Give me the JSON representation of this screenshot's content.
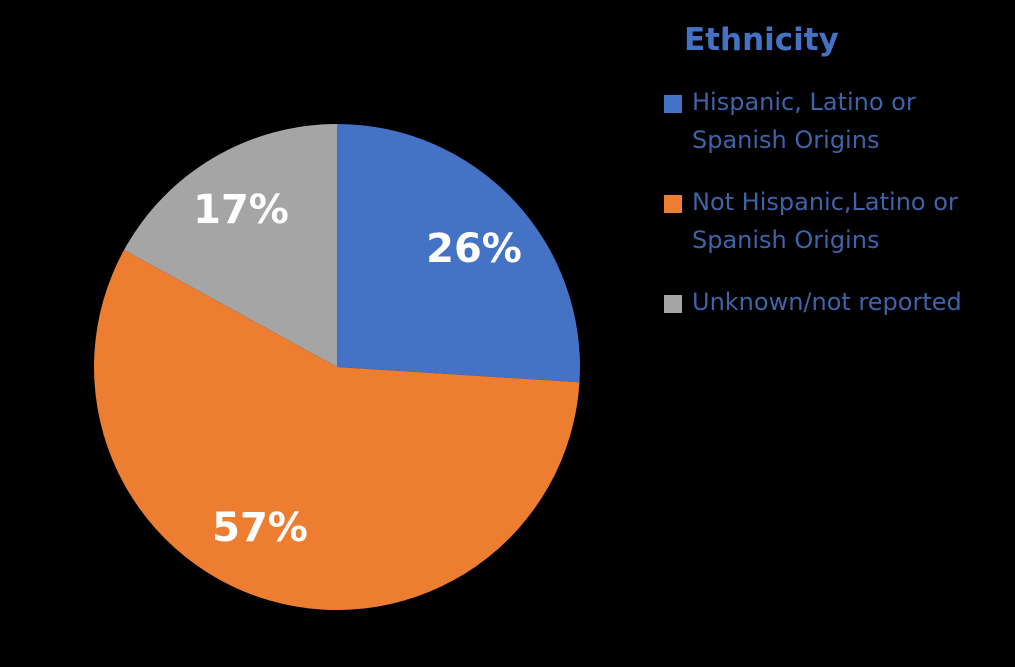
{
  "chart_data": {
    "type": "pie",
    "title": "Ethnicity",
    "categories": [
      "Hispanic, Latino or Spanish Origins",
      "Not Hispanic,Latino or Spanish Origins",
      "Unknown/not reported"
    ],
    "values": [
      26,
      57,
      17
    ],
    "labels": [
      "26%",
      "57%",
      "17%"
    ],
    "colors": [
      "#4472C4",
      "#ED7D31",
      "#A5A5A5"
    ],
    "start_angle_deg": 0,
    "direction": "clockwise",
    "legend_position": "right"
  },
  "legend": {
    "title": "Ethnicity",
    "items": [
      {
        "label_line1": "Hispanic, Latino or",
        "label_line2": "Spanish Origins",
        "color": "#4472C4"
      },
      {
        "label_line1": "Not Hispanic,Latino or",
        "label_line2": "Spanish Origins",
        "color": "#ED7D31"
      },
      {
        "label_line1": "Unknown/not reported",
        "label_line2": "",
        "color": "#A5A5A5"
      }
    ]
  }
}
